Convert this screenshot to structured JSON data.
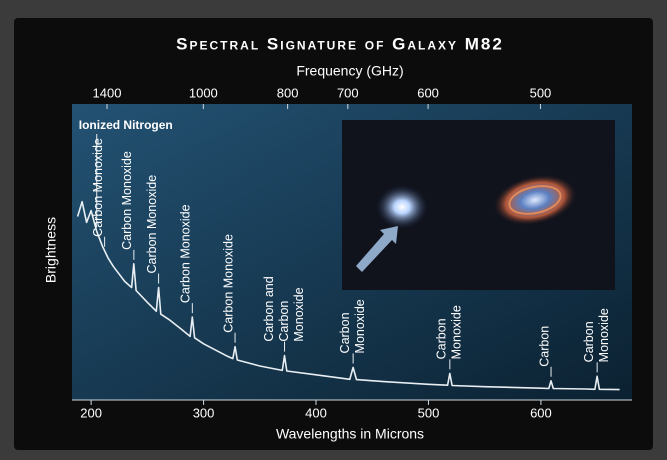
{
  "chart_data": {
    "type": "line",
    "title": "Spectral Signature of Galaxy M82",
    "xlabel": "Wavelengths in Microns",
    "ylabel": "Brightness",
    "x2label": "Frequency (GHz)",
    "x": [
      188,
      192,
      196,
      200,
      205,
      210,
      215,
      220,
      230,
      236,
      238,
      240,
      250,
      258,
      260,
      262,
      270,
      280,
      288,
      290,
      292,
      300,
      320,
      326,
      328,
      330,
      350,
      370,
      372,
      374,
      400,
      430,
      433,
      436,
      460,
      500,
      517,
      519,
      521,
      550,
      600,
      607,
      609,
      611,
      640,
      648,
      650,
      652,
      670
    ],
    "values": [
      62,
      67,
      60,
      64,
      57,
      52,
      48,
      45,
      40,
      38,
      46,
      37,
      33,
      30,
      38,
      29,
      27,
      24,
      21.5,
      28,
      21,
      19,
      15,
      14,
      18,
      13.5,
      11.5,
      10,
      15,
      9.8,
      8.5,
      7,
      11,
      6.9,
      6.2,
      5.3,
      5,
      9,
      4.9,
      4.5,
      4,
      3.9,
      6.5,
      3.9,
      3.7,
      3.6,
      8,
      3.6,
      3.5
    ],
    "color": "#e8eef2",
    "xlim": [
      183,
      681
    ],
    "ylim": [
      0,
      100
    ],
    "xticks": [
      200,
      300,
      400,
      500,
      600
    ],
    "x2ticks": [
      1400,
      1000,
      800,
      700,
      600,
      500
    ],
    "annotations": [
      {
        "x": 205,
        "orientation": "horizontal",
        "lines": [
          {
            "text": "Ionized Nitrogen",
            "color": "#e9c46a"
          }
        ]
      },
      {
        "x": 212,
        "lines": [
          {
            "text": "Carbon Monoxide",
            "color": "#ffffff"
          }
        ]
      },
      {
        "x": 238,
        "lines": [
          {
            "text": "Carbon Monoxide",
            "color": "#ffffff"
          }
        ]
      },
      {
        "x": 260,
        "lines": [
          {
            "text": "Carbon Monoxide",
            "color": "#ffffff"
          }
        ]
      },
      {
        "x": 290,
        "lines": [
          {
            "text": "Carbon Monoxide",
            "color": "#ffffff"
          }
        ]
      },
      {
        "x": 328,
        "lines": [
          {
            "text": "Carbon Monoxide",
            "color": "#ffffff"
          }
        ]
      },
      {
        "x": 372,
        "lines": [
          {
            "text": "Carbon and",
            "color": "#e9c46a"
          },
          {
            "text": "Carbon",
            "color": "#ffffff"
          },
          {
            "text": "Monoxide",
            "color": "#ffffff"
          }
        ]
      },
      {
        "x": 433,
        "lines": [
          {
            "text": "Carbon",
            "color": "#ffffff"
          },
          {
            "text": "Monoxide",
            "color": "#ffffff"
          }
        ]
      },
      {
        "x": 519,
        "lines": [
          {
            "text": "Carbon",
            "color": "#ffffff"
          },
          {
            "text": "Monoxide",
            "color": "#ffffff"
          }
        ]
      },
      {
        "x": 609,
        "lines": [
          {
            "text": "Carbon",
            "color": "#e9c46a"
          }
        ]
      },
      {
        "x": 650,
        "lines": [
          {
            "text": "Carbon",
            "color": "#ffffff"
          },
          {
            "text": "Monoxide",
            "color": "#ffffff"
          }
        ]
      }
    ]
  }
}
